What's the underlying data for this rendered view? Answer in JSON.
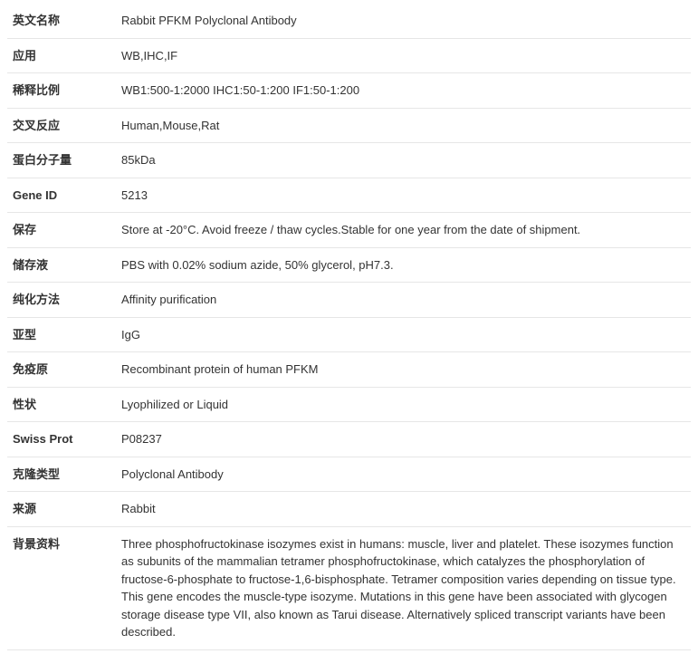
{
  "rows": [
    {
      "label": "英文名称",
      "value": "Rabbit PFKM Polyclonal Antibody"
    },
    {
      "label": "应用",
      "value": "WB,IHC,IF"
    },
    {
      "label": "稀释比例",
      "value": "WB1:500-1:2000 IHC1:50-1:200 IF1:50-1:200"
    },
    {
      "label": "交叉反应",
      "value": "Human,Mouse,Rat"
    },
    {
      "label": "蛋白分子量",
      "value": "85kDa"
    },
    {
      "label": "Gene ID",
      "value": "5213"
    },
    {
      "label": "保存",
      "value": "Store at -20°C. Avoid freeze / thaw cycles.Stable for one year from the date of shipment."
    },
    {
      "label": "储存液",
      "value": "PBS with 0.02% sodium azide, 50% glycerol, pH7.3."
    },
    {
      "label": "纯化方法",
      "value": "Affinity purification"
    },
    {
      "label": "亚型",
      "value": "IgG"
    },
    {
      "label": "免疫原",
      "value": "Recombinant protein of human PFKM"
    },
    {
      "label": "性状",
      "value": "Lyophilized or Liquid"
    },
    {
      "label": "Swiss Prot",
      "value": "P08237"
    },
    {
      "label": "克隆类型",
      "value": "Polyclonal Antibody"
    },
    {
      "label": "来源",
      "value": "Rabbit"
    },
    {
      "label": "背景资料",
      "value": "Three phosphofructokinase isozymes exist in humans: muscle, liver and platelet. These isozymes function as subunits of the mammalian tetramer phosphofructokinase, which catalyzes the phosphorylation of fructose-6-phosphate to fructose-1,6-bisphosphate. Tetramer composition varies depending on tissue type. This gene encodes the muscle-type isozyme. Mutations in this gene have been associated with glycogen storage disease type VII, also known as Tarui disease. Alternatively spliced transcript variants have been described."
    }
  ]
}
